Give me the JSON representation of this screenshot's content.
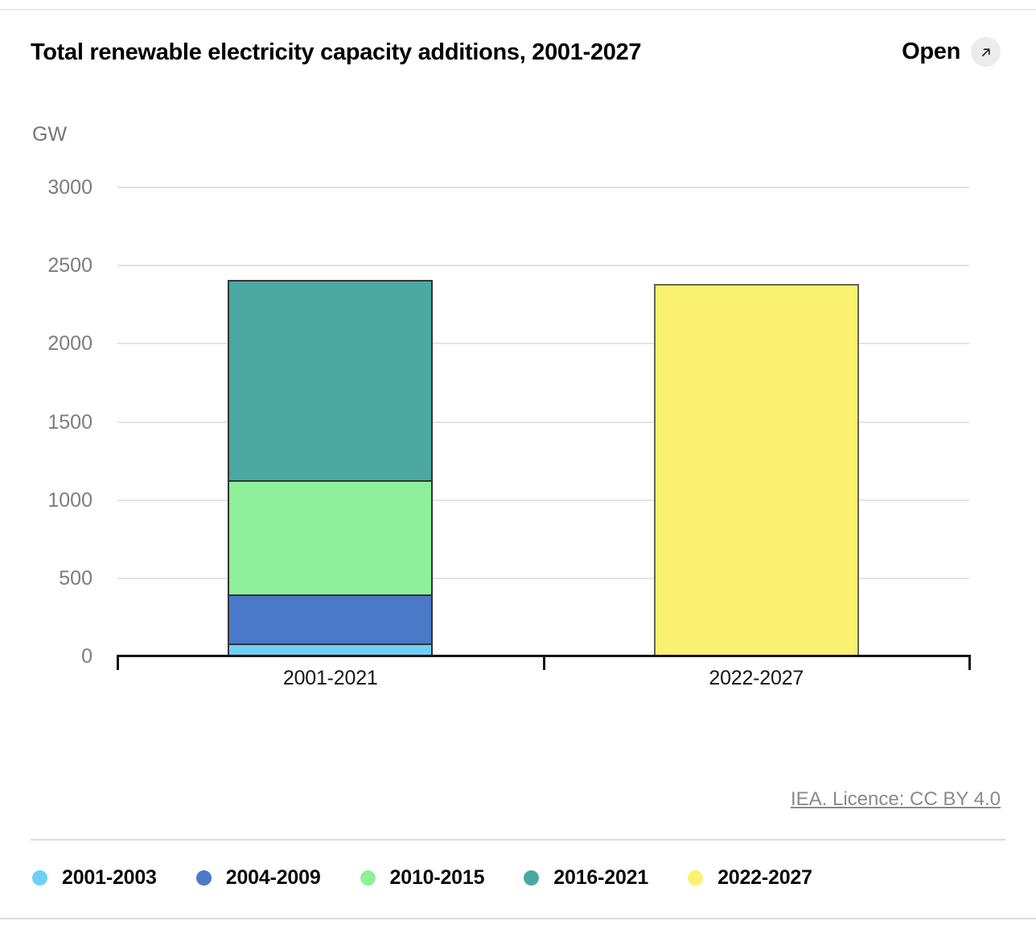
{
  "header": {
    "title": "Total renewable electricity capacity additions, 2001-2027",
    "open_label": "Open",
    "open_icon": "arrow-up-right-icon"
  },
  "footer": {
    "licence": "IEA. Licence: CC BY 4.0"
  },
  "chart_data": {
    "type": "bar",
    "stacked": true,
    "title": "Total renewable electricity capacity additions, 2001-2027",
    "unit_label": "GW",
    "xlabel": "",
    "ylabel": "GW",
    "categories": [
      "2001-2021",
      "2022-2027"
    ],
    "series": [
      {
        "name": "2001-2003",
        "color": "#70cff5",
        "stroke": "#333333",
        "values": [
          80,
          0
        ]
      },
      {
        "name": "2004-2009",
        "color": "#4a79c8",
        "stroke": "#333333",
        "values": [
          315,
          0
        ]
      },
      {
        "name": "2010-2015",
        "color": "#8ff09b",
        "stroke": "#333333",
        "values": [
          730,
          0
        ]
      },
      {
        "name": "2016-2021",
        "color": "#4ba9a1",
        "stroke": "#333333",
        "values": [
          1285,
          0
        ]
      },
      {
        "name": "2022-2027",
        "color": "#fbf170",
        "stroke": "#63635a",
        "values": [
          0,
          2380
        ]
      }
    ],
    "totals": [
      2410,
      2380
    ],
    "ylim": [
      0,
      3000
    ],
    "yticks": [
      0,
      500,
      1000,
      1500,
      2000,
      2500,
      3000
    ],
    "grid": true,
    "legend_position": "bottom",
    "colors": {
      "gridline": "#e5e5e5",
      "axis": "#141414",
      "tick_label": "#7d7d7d",
      "divider": "#dcdcdc"
    }
  }
}
